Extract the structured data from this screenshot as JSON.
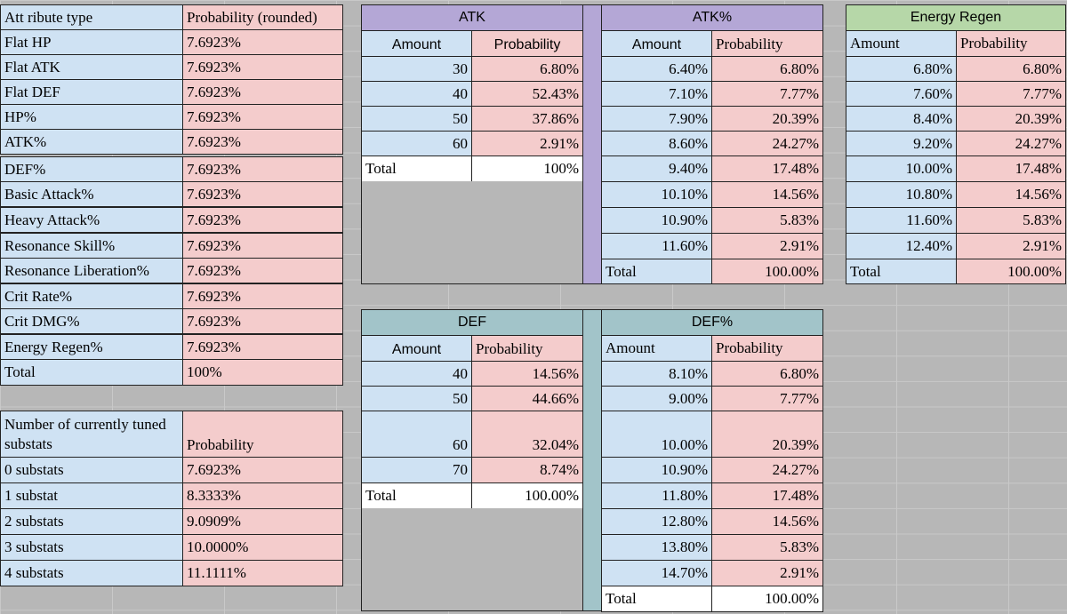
{
  "attr_table": {
    "header": [
      "Att ribute type",
      "Probability (rounded)"
    ],
    "rows": [
      [
        "Flat HP",
        "7.6923%"
      ],
      [
        "Flat ATK",
        "7.6923%"
      ],
      [
        "Flat DEF",
        "7.6923%"
      ],
      [
        "HP%",
        "7.6923%"
      ],
      [
        "ATK%",
        "7.6923%"
      ],
      [
        "DEF%",
        "7.6923%"
      ],
      [
        "Basic Attack%",
        "7.6923%"
      ],
      [
        "Heavy Attack%",
        "7.6923%"
      ],
      [
        "Resonance Skill%",
        "7.6923%"
      ],
      [
        "Resonance Liberation%",
        "7.6923%"
      ],
      [
        "Crit Rate%",
        "7.6923%"
      ],
      [
        "Crit DMG%",
        "7.6923%"
      ],
      [
        "Energy Regen%",
        "7.6923%"
      ],
      [
        "Total",
        "100%"
      ]
    ]
  },
  "substat_table": {
    "header": [
      "Number of currently tuned substats",
      "Probability"
    ],
    "rows": [
      [
        "0 substats",
        "7.6923%"
      ],
      [
        "1 substat",
        "8.3333%"
      ],
      [
        "2 substats",
        "9.0909%"
      ],
      [
        "3 substats",
        "10.0000%"
      ],
      [
        "4 substats",
        "11.1111%"
      ]
    ]
  },
  "atk_table": {
    "title": "ATK",
    "header": [
      "Amount",
      "Probability"
    ],
    "rows": [
      [
        "30",
        "6.80%"
      ],
      [
        "40",
        "52.43%"
      ],
      [
        "50",
        "37.86%"
      ],
      [
        "60",
        "2.91%"
      ]
    ],
    "total": [
      "Total",
      "100%"
    ]
  },
  "atkp_table": {
    "title": "ATK%",
    "header": [
      "Amount",
      "Probability"
    ],
    "rows": [
      [
        "6.40%",
        "6.80%"
      ],
      [
        "7.10%",
        "7.77%"
      ],
      [
        "7.90%",
        "20.39%"
      ],
      [
        "8.60%",
        "24.27%"
      ],
      [
        "9.40%",
        "17.48%"
      ],
      [
        "10.10%",
        "14.56%"
      ],
      [
        "10.90%",
        "5.83%"
      ],
      [
        "11.60%",
        "2.91%"
      ]
    ],
    "total": [
      "Total",
      "100.00%"
    ]
  },
  "energy_table": {
    "title": "Energy Regen",
    "header": [
      "Amount",
      "Probability"
    ],
    "rows": [
      [
        "6.80%",
        "6.80%"
      ],
      [
        "7.60%",
        "7.77%"
      ],
      [
        "8.40%",
        "20.39%"
      ],
      [
        "9.20%",
        "24.27%"
      ],
      [
        "10.00%",
        "17.48%"
      ],
      [
        "10.80%",
        "14.56%"
      ],
      [
        "11.60%",
        "5.83%"
      ],
      [
        "12.40%",
        "2.91%"
      ]
    ],
    "total": [
      "Total",
      "100.00%"
    ]
  },
  "def_table": {
    "title": "DEF",
    "header": [
      "Amount",
      "Probability"
    ],
    "rows": [
      [
        "40",
        "14.56%"
      ],
      [
        "50",
        "44.66%"
      ],
      [
        "60",
        "32.04%"
      ],
      [
        "70",
        "8.74%"
      ]
    ],
    "total": [
      "Total",
      "100.00%"
    ]
  },
  "defp_table": {
    "title": "DEF%",
    "header": [
      "Amount",
      "Probability"
    ],
    "rows": [
      [
        "8.10%",
        "6.80%"
      ],
      [
        "9.00%",
        "7.77%"
      ],
      [
        "10.00%",
        "20.39%"
      ],
      [
        "10.90%",
        "24.27%"
      ],
      [
        "11.80%",
        "17.48%"
      ],
      [
        "12.80%",
        "14.56%"
      ],
      [
        "13.80%",
        "5.83%"
      ],
      [
        "14.70%",
        "2.91%"
      ]
    ],
    "total": [
      "Total",
      "100.00%"
    ]
  },
  "colors": {
    "label_blue": "#cfe2f3",
    "value_pink": "#f4cccc",
    "atk_purple": "#b4a7d6",
    "def_teal": "#a2c4c9",
    "energy_green": "#b6d7a8",
    "background_gray": "#b7b7b7"
  }
}
